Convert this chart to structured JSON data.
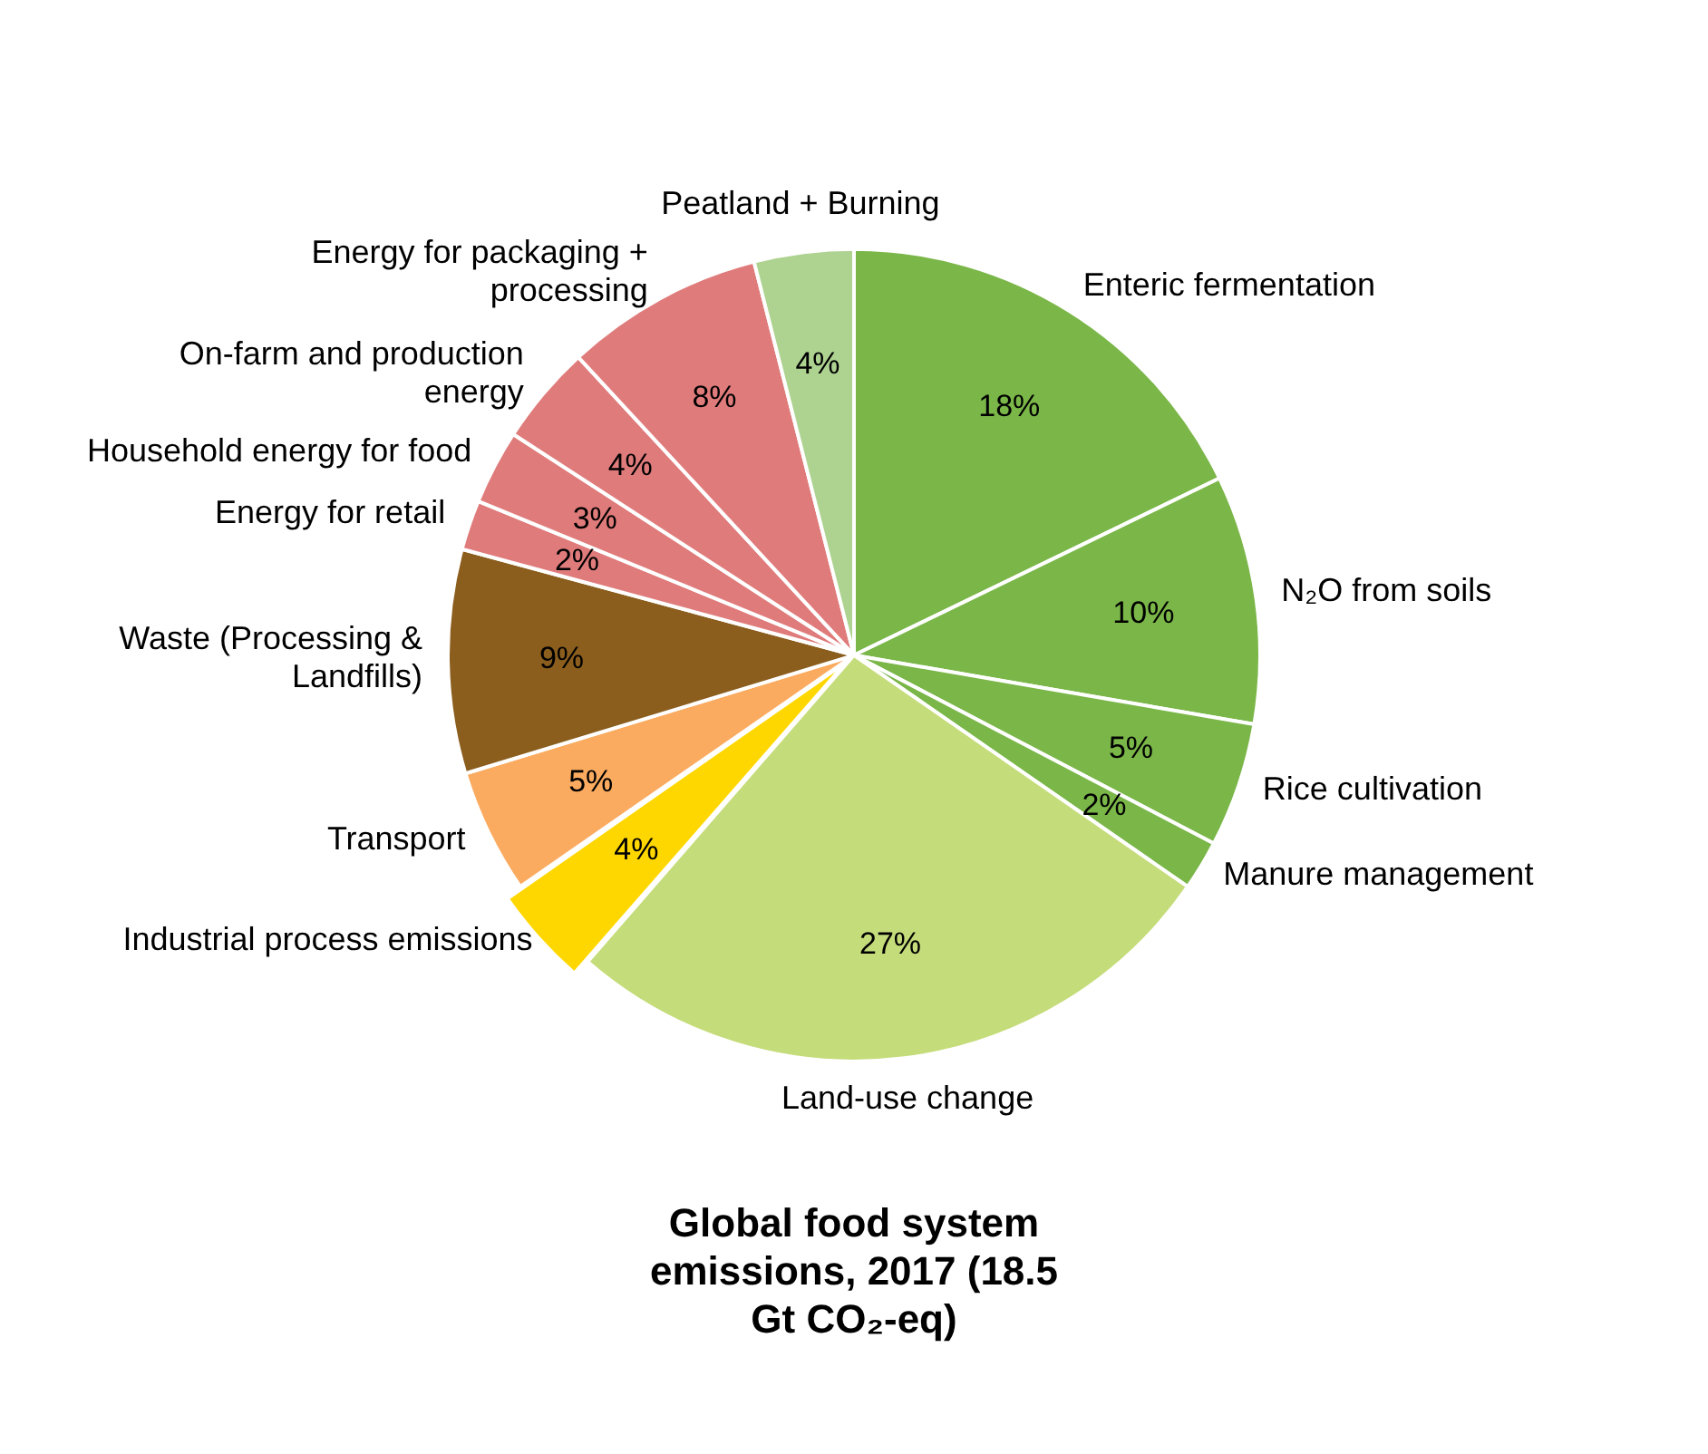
{
  "chart_data": {
    "type": "pie",
    "title": "Global food system emissions, 2017 (18.5 Gt CO₂-eq)",
    "categories": [
      "Enteric fermentation",
      "N₂O from soils",
      "Rice cultivation",
      "Manure management",
      "Land-use change",
      "Industrial process emissions",
      "Transport",
      "Waste (Processing & Landfills)",
      "Energy for retail",
      "Household energy for food",
      "On-farm and production energy",
      "Energy for packaging + processing",
      "Peatland + Burning"
    ],
    "values": [
      18,
      10,
      5,
      2,
      27,
      4,
      5,
      9,
      2,
      3,
      4,
      8,
      4
    ],
    "value_labels": [
      "18%",
      "10%",
      "5%",
      "2%",
      "27%",
      "4%",
      "5%",
      "9%",
      "2%",
      "3%",
      "4%",
      "8%",
      "4%"
    ],
    "colors": [
      "#7ab648",
      "#7ab648",
      "#7ab648",
      "#7ab648",
      "#c5dc7a",
      "#ffd700",
      "#fbab60",
      "#8b5e1e",
      "#e07b7b",
      "#e07b7b",
      "#e07b7b",
      "#e07b7b",
      "#aed391"
    ],
    "legend": false
  }
}
